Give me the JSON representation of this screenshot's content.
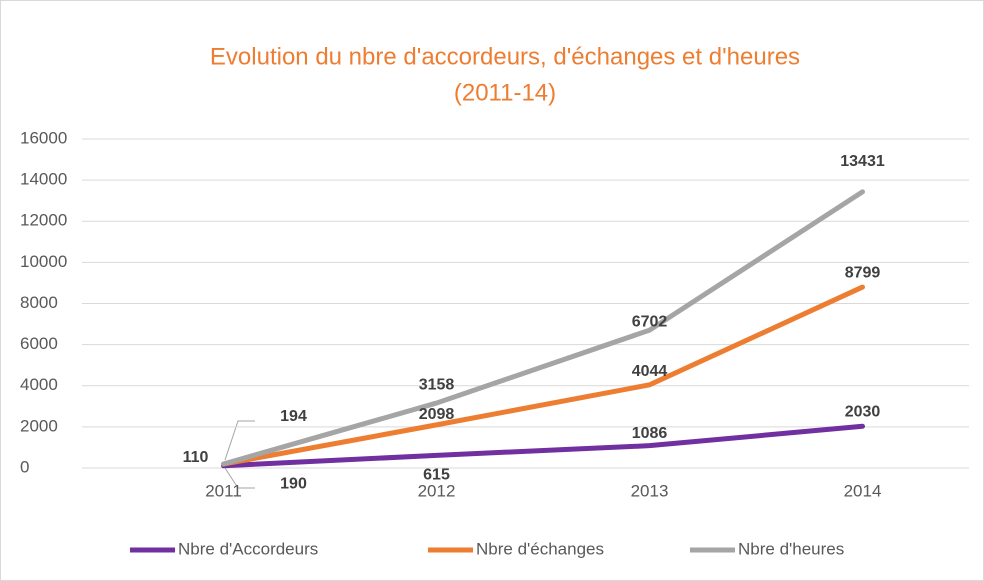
{
  "chart_data": {
    "type": "line",
    "title": [
      "Evolution du nbre d'accordeurs, d'échanges et d'heures",
      "(2011-14)"
    ],
    "categories": [
      "2011",
      "2012",
      "2013",
      "2014"
    ],
    "series": [
      {
        "name": "Nbre d'Accordeurs",
        "color": "#7030a0",
        "values": [
          110,
          615,
          1086,
          2030
        ]
      },
      {
        "name": "Nbre d'échanges",
        "color": "#ed7d31",
        "values": [
          190,
          2098,
          4044,
          8799
        ]
      },
      {
        "name": "Nbre d'heures",
        "color": "#a5a5a5",
        "values": [
          194,
          3158,
          6702,
          13431
        ]
      }
    ],
    "ylim": [
      0,
      16000
    ],
    "yticks": [
      0,
      2000,
      4000,
      6000,
      8000,
      10000,
      12000,
      14000,
      16000
    ],
    "grid": true,
    "legend": "bottom"
  }
}
